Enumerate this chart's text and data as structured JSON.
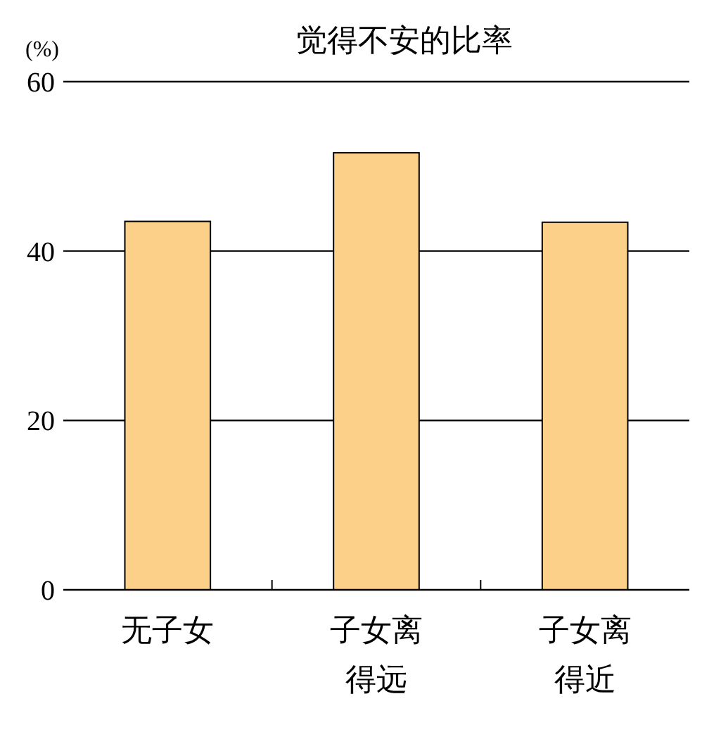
{
  "chart_data": {
    "type": "bar",
    "title": "觉得不安的比率",
    "ylabel": "(%)",
    "categories": [
      "无子女",
      "子女离得远",
      "子女离得近"
    ],
    "values": [
      43.5,
      51.6,
      43.4
    ],
    "color": "#fdd08a",
    "ylim": [
      0,
      60
    ],
    "yticks": [
      0,
      20,
      40,
      60
    ],
    "grid": "y"
  }
}
